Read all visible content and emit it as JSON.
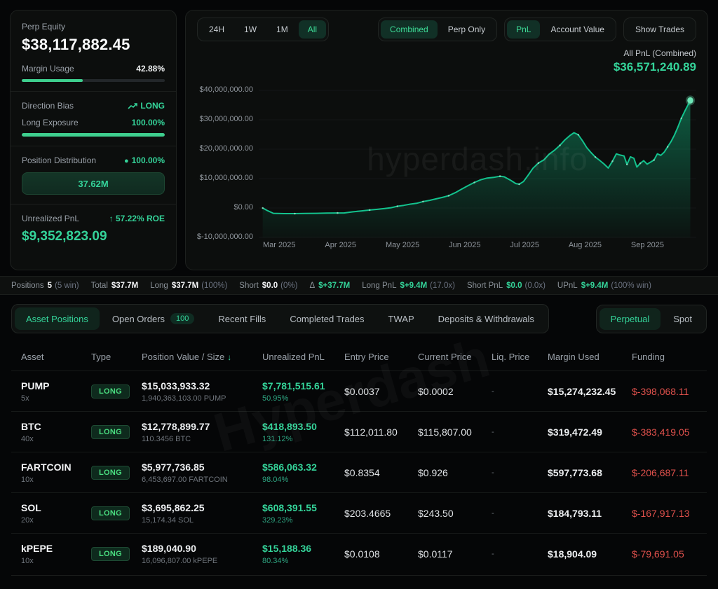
{
  "sidebar": {
    "perp_equity_label": "Perp Equity",
    "perp_equity_value": "$38,117,882.45",
    "margin_usage_label": "Margin Usage",
    "margin_usage_value": "42.88%",
    "margin_usage_pct": 42.88,
    "direction_bias_label": "Direction Bias",
    "direction_bias_value": "LONG",
    "long_exposure_label": "Long Exposure",
    "long_exposure_value": "100.00%",
    "long_exposure_pct": 100,
    "position_distribution_label": "Position Distribution",
    "position_distribution_pct": "100.00%",
    "position_distribution_bar": "37.62M",
    "unrealized_pnl_label": "Unrealized PnL",
    "unrealized_pnl_roe": "57.22% ROE",
    "unrealized_pnl_value": "$9,352,823.09"
  },
  "controls": {
    "ranges": [
      "24H",
      "1W",
      "1M",
      "All"
    ],
    "selected_range": "All",
    "mode_combined": "Combined",
    "mode_perp_only": "Perp Only",
    "selected_mode": "Combined",
    "metric_pnl": "PnL",
    "metric_account_value": "Account Value",
    "selected_metric": "PnL",
    "show_trades": "Show Trades",
    "all_pnl_label": "All PnL (Combined)",
    "all_pnl_value": "$36,571,240.89"
  },
  "chart_data": {
    "type": "area",
    "title": "All PnL (Combined)",
    "final_value": 36571240.89,
    "line_color": "#13c28d",
    "y_ticks": [
      "$40,000,000.00",
      "$30,000,000.00",
      "$20,000,000.00",
      "$10,000,000.00",
      "$0.00",
      "$-10,000,000.00"
    ],
    "y_tick_values_millions": [
      40,
      30,
      20,
      10,
      0,
      -10
    ],
    "y_range_millions": [
      -10,
      40
    ],
    "x_ticks": [
      "Mar 2025",
      "Apr 2025",
      "May 2025",
      "Jun 2025",
      "Jul 2025",
      "Aug 2025",
      "Sep 2025"
    ],
    "legend_position": "none",
    "grid": false,
    "watermark": "hyperdash.info",
    "points_millions": [
      [
        0.0,
        0.0
      ],
      [
        0.01,
        -0.8
      ],
      [
        0.025,
        -1.8
      ],
      [
        0.05,
        -1.9
      ],
      [
        0.075,
        -1.9
      ],
      [
        0.1,
        -1.85
      ],
      [
        0.125,
        -1.8
      ],
      [
        0.15,
        -1.75
      ],
      [
        0.175,
        -1.7
      ],
      [
        0.19,
        -1.7
      ],
      [
        0.21,
        -1.3
      ],
      [
        0.23,
        -1.0
      ],
      [
        0.25,
        -0.7
      ],
      [
        0.27,
        -0.4
      ],
      [
        0.285,
        -0.2
      ],
      [
        0.3,
        0.1
      ],
      [
        0.315,
        0.6
      ],
      [
        0.33,
        0.9
      ],
      [
        0.345,
        1.3
      ],
      [
        0.36,
        1.6
      ],
      [
        0.375,
        2.2
      ],
      [
        0.39,
        2.6
      ],
      [
        0.405,
        3.1
      ],
      [
        0.42,
        3.6
      ],
      [
        0.435,
        4.2
      ],
      [
        0.45,
        5.2
      ],
      [
        0.465,
        6.4
      ],
      [
        0.48,
        7.6
      ],
      [
        0.495,
        8.7
      ],
      [
        0.51,
        9.6
      ],
      [
        0.525,
        10.2
      ],
      [
        0.54,
        10.4
      ],
      [
        0.555,
        10.8
      ],
      [
        0.565,
        10.6
      ],
      [
        0.58,
        9.4
      ],
      [
        0.592,
        8.3
      ],
      [
        0.6,
        8.1
      ],
      [
        0.61,
        9.0
      ],
      [
        0.62,
        11.0
      ],
      [
        0.632,
        13.5
      ],
      [
        0.645,
        15.3
      ],
      [
        0.658,
        16.4
      ],
      [
        0.67,
        18.3
      ],
      [
        0.682,
        19.6
      ],
      [
        0.695,
        21.3
      ],
      [
        0.707,
        23.2
      ],
      [
        0.718,
        24.6
      ],
      [
        0.728,
        25.6
      ],
      [
        0.738,
        24.9
      ],
      [
        0.748,
        22.8
      ],
      [
        0.758,
        20.5
      ],
      [
        0.768,
        18.8
      ],
      [
        0.778,
        17.3
      ],
      [
        0.788,
        16.2
      ],
      [
        0.798,
        15.0
      ],
      [
        0.808,
        13.6
      ],
      [
        0.818,
        15.9
      ],
      [
        0.827,
        18.4
      ],
      [
        0.836,
        18.0
      ],
      [
        0.845,
        17.7
      ],
      [
        0.852,
        14.8
      ],
      [
        0.86,
        17.4
      ],
      [
        0.868,
        16.9
      ],
      [
        0.875,
        13.9
      ],
      [
        0.883,
        15.2
      ],
      [
        0.891,
        16.1
      ],
      [
        0.899,
        14.9
      ],
      [
        0.907,
        15.6
      ],
      [
        0.915,
        16.3
      ],
      [
        0.923,
        18.4
      ],
      [
        0.931,
        17.9
      ],
      [
        0.939,
        19.0
      ],
      [
        0.947,
        20.8
      ],
      [
        0.955,
        22.6
      ],
      [
        0.963,
        24.8
      ],
      [
        0.971,
        27.5
      ],
      [
        0.979,
        30.5
      ],
      [
        0.988,
        33.2
      ],
      [
        1.0,
        36.57
      ]
    ]
  },
  "stats_bar": {
    "items": [
      {
        "label": "Positions",
        "value": "5",
        "extra": "(5 win)"
      },
      {
        "label": "Total",
        "value": "$37.7M",
        "extra": ""
      },
      {
        "label": "Long",
        "value": "$37.7M",
        "extra": "(100%)"
      },
      {
        "label": "Short",
        "value": "$0.0",
        "extra": "(0%)"
      },
      {
        "label": "Δ",
        "value": "$+37.7M",
        "extra": ""
      },
      {
        "label": "Long PnL",
        "value": "$+9.4M",
        "extra": "(17.0x)"
      },
      {
        "label": "Short PnL",
        "value": "$0.0",
        "extra": "(0.0x)"
      },
      {
        "label": "UPnL",
        "value": "$+9.4M",
        "extra": "(100% win)"
      }
    ]
  },
  "tabs": {
    "asset_positions": "Asset Positions",
    "open_orders": "Open Orders",
    "open_orders_badge": "100",
    "recent_fills": "Recent Fills",
    "completed_trades": "Completed Trades",
    "twap": "TWAP",
    "deposits_withdrawals": "Deposits & Withdrawals",
    "selected": "Asset Positions",
    "market_perpetual": "Perpetual",
    "market_spot": "Spot",
    "selected_market": "Perpetual"
  },
  "table": {
    "watermark": "Hyperdash",
    "headers": {
      "asset": "Asset",
      "type": "Type",
      "position": "Position Value / Size",
      "upnl": "Unrealized PnL",
      "entry": "Entry Price",
      "current": "Current Price",
      "liq": "Liq. Price",
      "margin": "Margin Used",
      "funding": "Funding"
    },
    "sort_column": "Position Value / Size",
    "sort_direction": "desc",
    "rows": [
      {
        "asset": "PUMP",
        "leverage": "5x",
        "type": "LONG",
        "value": "$15,033,933.32",
        "size": "1,940,363,103.00 PUMP",
        "upnl": "$7,781,515.61",
        "upnl_pct": "50.95%",
        "entry": "$0.0037",
        "current": "$0.0002",
        "liq": "-",
        "margin": "$15,274,232.45",
        "funding": "$-398,068.11"
      },
      {
        "asset": "BTC",
        "leverage": "40x",
        "type": "LONG",
        "value": "$12,778,899.77",
        "size": "110.3456 BTC",
        "upnl": "$418,893.50",
        "upnl_pct": "131.12%",
        "entry": "$112,011.80",
        "current": "$115,807.00",
        "liq": "-",
        "margin": "$319,472.49",
        "funding": "$-383,419.05"
      },
      {
        "asset": "FARTCOIN",
        "leverage": "10x",
        "type": "LONG",
        "value": "$5,977,736.85",
        "size": "6,453,697.00 FARTCOIN",
        "upnl": "$586,063.32",
        "upnl_pct": "98.04%",
        "entry": "$0.8354",
        "current": "$0.926",
        "liq": "-",
        "margin": "$597,773.68",
        "funding": "$-206,687.11"
      },
      {
        "asset": "SOL",
        "leverage": "20x",
        "type": "LONG",
        "value": "$3,695,862.25",
        "size": "15,174.34 SOL",
        "upnl": "$608,391.55",
        "upnl_pct": "329.23%",
        "entry": "$203.4665",
        "current": "$243.50",
        "liq": "-",
        "margin": "$184,793.11",
        "funding": "$-167,917.13"
      },
      {
        "asset": "kPEPE",
        "leverage": "10x",
        "type": "LONG",
        "value": "$189,040.90",
        "size": "16,096,807.00 kPEPE",
        "upnl": "$15,188.36",
        "upnl_pct": "80.34%",
        "entry": "$0.0108",
        "current": "$0.0117",
        "liq": "-",
        "margin": "$18,904.09",
        "funding": "$-79,691.05"
      }
    ]
  },
  "colors": {
    "accent_green": "#34d399",
    "badge_green": "#4ade80",
    "negative_red": "#e0514c",
    "background": "#050607"
  }
}
